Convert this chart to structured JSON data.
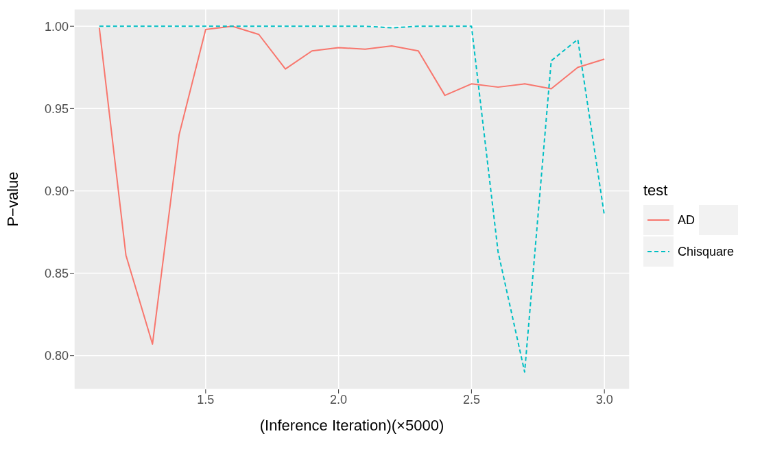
{
  "chart_data": {
    "type": "line",
    "xlabel": "(Inference Iteration)(×5000)",
    "ylabel": "P−value",
    "legend_title": "test",
    "legend": "right",
    "grid": true,
    "x": [
      1.1,
      1.2,
      1.3,
      1.4,
      1.5,
      1.6,
      1.7,
      1.8,
      1.9,
      2.0,
      2.1,
      2.2,
      2.3,
      2.4,
      2.5,
      2.6,
      2.7,
      2.8,
      2.9,
      3.0
    ],
    "series": [
      {
        "name": "AD",
        "color": "#f8766d",
        "line_style": "solid",
        "values": [
          0.999,
          0.861,
          0.807,
          0.934,
          0.998,
          1.0,
          0.995,
          0.974,
          0.985,
          0.987,
          0.986,
          0.988,
          0.985,
          0.958,
          0.965,
          0.963,
          0.965,
          0.962,
          0.975,
          0.98
        ]
      },
      {
        "name": "Chisquare",
        "color": "#00bfc4",
        "line_style": "dashed",
        "values": [
          1.0,
          1.0,
          1.0,
          1.0,
          1.0,
          1.0,
          1.0,
          1.0,
          1.0,
          1.0,
          1.0,
          0.999,
          1.0,
          1.0,
          1.0,
          0.863,
          0.79,
          0.979,
          0.992,
          0.885
        ]
      }
    ],
    "xlim": [
      1.005,
      3.095
    ],
    "xticks": [
      {
        "value": 1.5,
        "label": "1.5"
      },
      {
        "value": 2.0,
        "label": "2.0"
      },
      {
        "value": 2.5,
        "label": "2.5"
      },
      {
        "value": 3.0,
        "label": "3.0"
      }
    ],
    "ylim": [
      0.7795,
      1.0105
    ],
    "yticks": [
      {
        "value": 0.8,
        "label": "0.80"
      },
      {
        "value": 0.85,
        "label": "0.85"
      },
      {
        "value": 0.9,
        "label": "0.90"
      },
      {
        "value": 0.95,
        "label": "0.95"
      },
      {
        "value": 1.0,
        "label": "1.00"
      }
    ]
  }
}
